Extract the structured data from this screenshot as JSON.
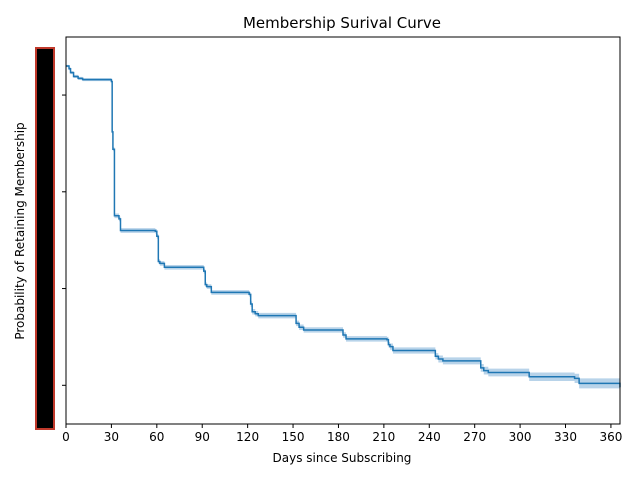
{
  "chart_data": {
    "type": "line",
    "title": "Membership Surival Curve",
    "xlabel": "Days since Subscribing",
    "ylabel": "Probability of Retaining Membership",
    "xlim": [
      0,
      366
    ],
    "ylim": [
      0.0,
      1.0
    ],
    "x_ticks": [
      0,
      30,
      60,
      90,
      120,
      150,
      180,
      210,
      240,
      270,
      300,
      330,
      360
    ],
    "y_tick_count": 5,
    "y_tick_labels_visible": false,
    "redacted_y_tick_labels": true,
    "grid": false,
    "legend": "none",
    "colors": {
      "line": "#1f77b4",
      "band": "#a6c8e3",
      "redaction_fill": "#000000",
      "redaction_border": "#c0392b"
    },
    "series": [
      {
        "x": [
          0,
          2,
          3,
          5,
          8,
          11,
          29,
          30,
          30.5,
          31,
          32,
          35,
          36,
          59,
          60,
          61,
          62,
          65,
          89,
          91,
          92,
          93,
          96,
          120,
          121,
          122,
          123,
          125,
          127,
          151,
          152,
          154,
          157,
          181,
          183,
          185,
          212,
          213,
          214,
          216,
          243,
          244,
          246,
          249,
          273,
          274,
          276,
          279,
          305,
          306,
          336,
          339,
          366
        ],
        "y": [
          0.925,
          0.918,
          0.908,
          0.898,
          0.893,
          0.89,
          0.89,
          0.885,
          0.755,
          0.71,
          0.538,
          0.53,
          0.5,
          0.498,
          0.485,
          0.42,
          0.415,
          0.405,
          0.405,
          0.395,
          0.36,
          0.355,
          0.34,
          0.34,
          0.335,
          0.31,
          0.29,
          0.285,
          0.28,
          0.28,
          0.26,
          0.25,
          0.243,
          0.243,
          0.23,
          0.22,
          0.218,
          0.205,
          0.2,
          0.19,
          0.19,
          0.175,
          0.168,
          0.163,
          0.163,
          0.145,
          0.138,
          0.133,
          0.133,
          0.122,
          0.118,
          0.105,
          0.095
        ],
        "ci_halfwidth": [
          0.003,
          0.004,
          0.004,
          0.004,
          0.004,
          0.004,
          0.004,
          0.004,
          0.005,
          0.005,
          0.006,
          0.006,
          0.006,
          0.006,
          0.006,
          0.006,
          0.006,
          0.006,
          0.006,
          0.006,
          0.006,
          0.006,
          0.006,
          0.006,
          0.006,
          0.007,
          0.007,
          0.007,
          0.007,
          0.007,
          0.007,
          0.007,
          0.007,
          0.007,
          0.007,
          0.007,
          0.007,
          0.007,
          0.008,
          0.008,
          0.008,
          0.008,
          0.009,
          0.009,
          0.009,
          0.01,
          0.01,
          0.01,
          0.01,
          0.011,
          0.012,
          0.013,
          0.015
        ]
      }
    ]
  }
}
